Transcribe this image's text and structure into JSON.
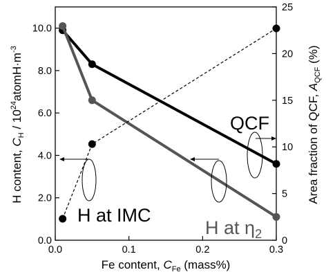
{
  "chart_data": {
    "type": "line",
    "x_axis": {
      "label_main": "Fe content, ",
      "label_var": "C",
      "label_sub": "Fe",
      "label_unit": " (mass%)",
      "range": [
        0,
        0.3
      ],
      "ticks": [
        "0.0",
        "0.1",
        "0.2",
        "0.3"
      ],
      "tick_values": [
        0,
        0.1,
        0.2,
        0.3
      ]
    },
    "y_left_axis": {
      "label_main": "H content, ",
      "label_var": "C",
      "label_sub": "H",
      "label_unit_pre": " / 10",
      "label_sup": "24",
      "label_unit_post": "atomH·m",
      "label_sup2": "-3",
      "range": [
        0,
        11
      ],
      "ticks": [
        "0.0",
        "2.0",
        "4.0",
        "6.0",
        "8.0",
        "10.0"
      ],
      "tick_values": [
        0,
        2,
        4,
        6,
        8,
        10
      ]
    },
    "y_right_axis": {
      "label_main": "Area fraction of QCF, ",
      "label_var": "A",
      "label_sub": "QCF",
      "label_unit": " (%)",
      "range": [
        0,
        25
      ],
      "ticks": [
        "0",
        "5",
        "10",
        "15",
        "20",
        "25"
      ],
      "tick_values": [
        0,
        5,
        10,
        15,
        20,
        25
      ]
    },
    "series": [
      {
        "name": "H at IMC",
        "axis": "left",
        "color": "#000000",
        "style": "solid",
        "x": [
          0.01,
          0.05,
          0.3
        ],
        "y": [
          9.9,
          8.3,
          3.6
        ]
      },
      {
        "name": "H at η2",
        "axis": "left",
        "color": "#555555",
        "style": "solid",
        "x": [
          0.01,
          0.05,
          0.3
        ],
        "y": [
          10.1,
          6.6,
          1.1
        ]
      },
      {
        "name": "QCF",
        "axis": "right",
        "color": "#000000",
        "style": "dashed",
        "x": [
          0.01,
          0.05,
          0.3
        ],
        "y": [
          2.3,
          10.3,
          22.7
        ]
      }
    ],
    "annotations": {
      "qcf": "QCF",
      "imc": "H at IMC",
      "eta_pre": "H at ",
      "eta_sym": "η",
      "eta_sub": "2"
    }
  }
}
